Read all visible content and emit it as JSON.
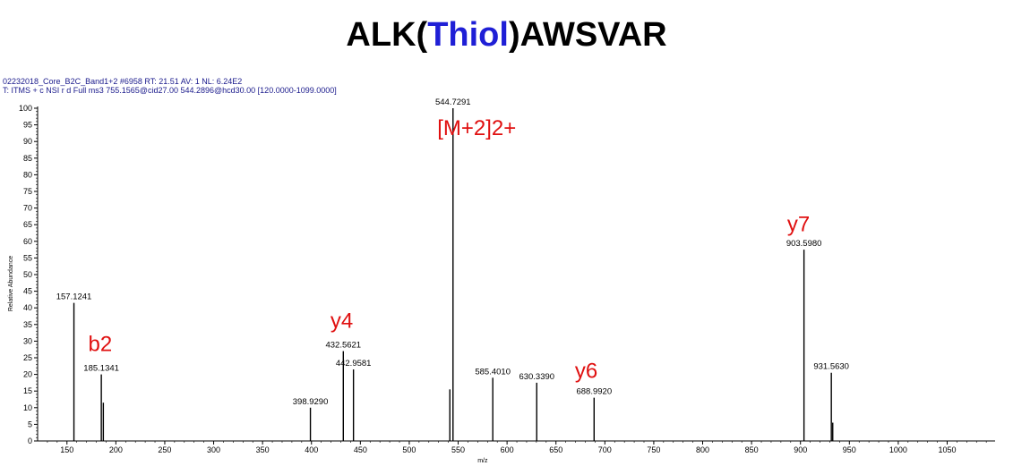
{
  "title": {
    "prefix": "ALK(",
    "highlight": "Thiol",
    "suffix": ")AWSVAR"
  },
  "header": {
    "line1": "02232018_Core_B2C_Band1+2 #6958  RT: 21.51  AV: 1  NL: 6.24E2",
    "line2": "T: ITMS + c NSI r d Full ms3 755.1565@cid27.00 544.2896@hcd30.00 [120.0000-1099.0000]"
  },
  "colors": {
    "highlight": "#1f1fd6",
    "ion_label": "#e01010",
    "peaks": "#000000"
  },
  "chart_data": {
    "type": "bar",
    "xlabel": "m/z",
    "ylabel": "Relative Abundance",
    "xlim": [
      120,
      1099
    ],
    "ylim": [
      0,
      100
    ],
    "x_ticks": [
      150,
      200,
      250,
      300,
      350,
      400,
      450,
      500,
      550,
      600,
      650,
      700,
      750,
      800,
      850,
      900,
      950,
      1000,
      1050
    ],
    "y_ticks": [
      0,
      5,
      10,
      15,
      20,
      25,
      30,
      35,
      40,
      45,
      50,
      55,
      60,
      65,
      70,
      75,
      80,
      85,
      90,
      95,
      100
    ],
    "grid": false,
    "peaks": [
      {
        "mz": 157.1241,
        "intensity": 41.5,
        "label": "157.1241"
      },
      {
        "mz": 185.1341,
        "intensity": 20,
        "label": "185.1341"
      },
      {
        "mz": 187.2,
        "intensity": 11.5,
        "label": ""
      },
      {
        "mz": 398.929,
        "intensity": 10,
        "label": "398.9290"
      },
      {
        "mz": 432.5621,
        "intensity": 27,
        "label": "432.5621"
      },
      {
        "mz": 442.9581,
        "intensity": 21.5,
        "label": "442.9581"
      },
      {
        "mz": 541.5,
        "intensity": 15.5,
        "label": ""
      },
      {
        "mz": 544.7291,
        "intensity": 100,
        "label": "544.7291"
      },
      {
        "mz": 585.401,
        "intensity": 19,
        "label": "585.4010"
      },
      {
        "mz": 630.339,
        "intensity": 17.5,
        "label": "630.3390"
      },
      {
        "mz": 688.992,
        "intensity": 13,
        "label": "688.9920"
      },
      {
        "mz": 903.598,
        "intensity": 57.5,
        "label": "903.5980"
      },
      {
        "mz": 931.563,
        "intensity": 20.5,
        "label": "931.5630"
      },
      {
        "mz": 933.0,
        "intensity": 5.5,
        "label": ""
      }
    ],
    "ion_annotations": [
      {
        "text": "b2",
        "mz": 184,
        "y": 27
      },
      {
        "text": "y4",
        "mz": 431,
        "y": 34
      },
      {
        "text": "[M+2]2+",
        "mz": 569,
        "y": 92
      },
      {
        "text": "y6",
        "mz": 681,
        "y": 19
      },
      {
        "text": "y7",
        "mz": 898,
        "y": 63
      }
    ]
  }
}
